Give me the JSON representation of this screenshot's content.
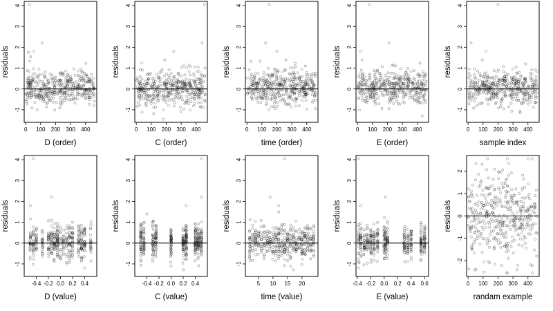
{
  "chart_data": [
    {
      "type": "scatter",
      "xlabel": "D (order)",
      "ylabel": "residuals",
      "distribution": "uniform",
      "x_range": [
        1,
        460
      ],
      "xlim": [
        -10,
        475
      ],
      "ylim": [
        -1.6,
        4.2
      ],
      "xticks": [
        0,
        100,
        200,
        300,
        400
      ],
      "xtick_labels": [
        "0",
        "100",
        "200",
        "300",
        "400"
      ],
      "yticks": [
        -1,
        0,
        1,
        2,
        3,
        4
      ],
      "ytick_labels": [
        "-1",
        "0",
        "1",
        "2",
        "3",
        "4"
      ],
      "hline": 0,
      "outliers": [
        [
          25,
          4.05
        ],
        [
          55,
          1.8
        ],
        [
          18,
          1.75
        ],
        [
          110,
          2.2
        ]
      ],
      "seed": 11
    },
    {
      "type": "scatter",
      "xlabel": "C (order)",
      "ylabel": "residuals",
      "distribution": "uniform",
      "x_range": [
        1,
        460
      ],
      "xlim": [
        -10,
        475
      ],
      "ylim": [
        -1.6,
        4.2
      ],
      "xticks": [
        0,
        100,
        200,
        300,
        400
      ],
      "xtick_labels": [
        "0",
        "100",
        "200",
        "300",
        "400"
      ],
      "yticks": [
        -1,
        0,
        1,
        2,
        3,
        4
      ],
      "ytick_labels": [
        "-1",
        "0",
        "1",
        "2",
        "3",
        "4"
      ],
      "hline": 0,
      "outliers": [
        [
          455,
          4.05
        ],
        [
          440,
          2.2
        ],
        [
          250,
          1.8
        ],
        [
          190,
          1.4
        ]
      ],
      "seed": 23
    },
    {
      "type": "scatter",
      "xlabel": "time (order)",
      "ylabel": "residuals",
      "distribution": "uniform",
      "x_range": [
        1,
        460
      ],
      "xlim": [
        -10,
        475
      ],
      "ylim": [
        -1.6,
        4.2
      ],
      "xticks": [
        0,
        100,
        200,
        300,
        400
      ],
      "xtick_labels": [
        "0",
        "100",
        "200",
        "300",
        "400"
      ],
      "yticks": [
        -1,
        0,
        1,
        2,
        3,
        4
      ],
      "ytick_labels": [
        "-1",
        "0",
        "1",
        "2",
        "3",
        "4"
      ],
      "hline": 0,
      "outliers": [
        [
          150,
          4.05
        ],
        [
          125,
          2.2
        ],
        [
          200,
          1.8
        ],
        [
          260,
          1.4
        ]
      ],
      "seed": 37
    },
    {
      "type": "scatter",
      "xlabel": "E (order)",
      "ylabel": "residuals",
      "distribution": "uniform",
      "x_range": [
        1,
        460
      ],
      "xlim": [
        -10,
        475
      ],
      "ylim": [
        -1.6,
        4.2
      ],
      "xticks": [
        0,
        100,
        200,
        300,
        400
      ],
      "xtick_labels": [
        "0",
        "100",
        "200",
        "300",
        "400"
      ],
      "yticks": [
        -1,
        0,
        1,
        2,
        3,
        4
      ],
      "ytick_labels": [
        "-1",
        "0",
        "1",
        "2",
        "3",
        "4"
      ],
      "hline": 0,
      "outliers": [
        [
          80,
          4.05
        ],
        [
          210,
          2.2
        ],
        [
          20,
          1.8
        ],
        [
          30,
          1.4
        ]
      ],
      "seed": 41
    },
    {
      "type": "scatter",
      "xlabel": "sample index",
      "ylabel": "residuals",
      "distribution": "uniform",
      "x_range": [
        1,
        460
      ],
      "xlim": [
        -10,
        475
      ],
      "ylim": [
        -1.6,
        4.2
      ],
      "xticks": [
        0,
        100,
        200,
        300,
        400
      ],
      "xtick_labels": [
        "0",
        "100",
        "200",
        "300",
        "400"
      ],
      "yticks": [
        -1,
        0,
        1,
        2,
        3,
        4
      ],
      "ytick_labels": [
        "-1",
        "0",
        "1",
        "2",
        "3",
        "4"
      ],
      "hline": 0,
      "outliers": [
        [
          200,
          4.05
        ],
        [
          20,
          2.2
        ],
        [
          120,
          1.8
        ],
        [
          95,
          1.4
        ]
      ],
      "seed": 53
    },
    {
      "type": "scatter",
      "xlabel": "D (value)",
      "ylabel": "residuals",
      "distribution": "clustered",
      "x_centers": [
        -0.5,
        -0.45,
        -0.4,
        -0.3,
        -0.2,
        -0.15,
        -0.1,
        -0.05,
        0,
        0.05,
        0.1,
        0.15,
        0.2,
        0.3,
        0.35,
        0.4,
        0.5
      ],
      "xlim": [
        -0.6,
        0.6
      ],
      "ylim": [
        -1.6,
        4.2
      ],
      "xticks": [
        -0.4,
        -0.2,
        0,
        0.2,
        0.4
      ],
      "xtick_labels": [
        "-0.4",
        "-0.2",
        "0.0",
        "0.2",
        "0.4"
      ],
      "yticks": [
        -1,
        0,
        1,
        2,
        3,
        4
      ],
      "ytick_labels": [
        "-1",
        "0",
        "1",
        "2",
        "3",
        "4"
      ],
      "hline": 0,
      "outliers": [
        [
          -0.45,
          4.05
        ],
        [
          -0.15,
          2.2
        ],
        [
          -0.5,
          1.8
        ],
        [
          0.2,
          1.0
        ]
      ],
      "seed": 61
    },
    {
      "type": "scatter",
      "xlabel": "C (value)",
      "ylabel": "residuals",
      "distribution": "clustered",
      "x_centers": [
        -0.5,
        -0.45,
        -0.3,
        -0.25,
        0,
        0.2,
        0.25,
        0.4,
        0.45,
        0.5
      ],
      "xlim": [
        -0.6,
        0.6
      ],
      "ylim": [
        -1.6,
        4.2
      ],
      "xticks": [
        -0.4,
        -0.2,
        0,
        0.2,
        0.4
      ],
      "xtick_labels": [
        "-0.4",
        "-0.2",
        "0.0",
        "0.2",
        "0.4"
      ],
      "yticks": [
        -1,
        0,
        1,
        2,
        3,
        4
      ],
      "ytick_labels": [
        "-1",
        "0",
        "1",
        "2",
        "3",
        "4"
      ],
      "hline": 0,
      "outliers": [
        [
          0.5,
          4.05
        ],
        [
          0.5,
          2.2
        ],
        [
          0.25,
          1.8
        ],
        [
          -0.4,
          1.4
        ]
      ],
      "seed": 71
    },
    {
      "type": "scatter",
      "xlabel": "time (value)",
      "ylabel": "residuals",
      "distribution": "clustered",
      "x_centers": [
        2,
        3,
        4,
        5,
        6,
        7,
        8,
        9,
        10,
        11,
        12,
        13,
        14,
        15,
        16,
        17,
        18,
        19,
        20,
        21,
        22,
        23,
        24
      ],
      "xlim": [
        0.5,
        25.5
      ],
      "ylim": [
        -1.6,
        4.2
      ],
      "xticks": [
        5,
        10,
        15,
        20
      ],
      "xtick_labels": [
        "5",
        "10",
        "15",
        "20"
      ],
      "yticks": [
        -1,
        0,
        1,
        2,
        3,
        4
      ],
      "ytick_labels": [
        "-1",
        "0",
        "1",
        "2",
        "3",
        "4"
      ],
      "hline": 0,
      "outliers": [
        [
          14,
          4.05
        ],
        [
          9,
          2.2
        ],
        [
          12,
          1.8
        ],
        [
          12,
          1.5
        ]
      ],
      "seed": 83
    },
    {
      "type": "scatter",
      "xlabel": "E (value)",
      "ylabel": "residuals",
      "distribution": "clustered",
      "x_centers": [
        -0.38,
        -0.35,
        -0.3,
        -0.25,
        -0.2,
        -0.15,
        -0.1,
        0,
        0.02,
        0.05,
        0.3,
        0.35,
        0.4,
        0.55,
        0.6
      ],
      "xlim": [
        -0.42,
        0.66
      ],
      "ylim": [
        -1.6,
        4.2
      ],
      "xticks": [
        -0.4,
        -0.2,
        0,
        0.2,
        0.4,
        0.6
      ],
      "xtick_labels": [
        "-0.4",
        "-0.2",
        "0.0",
        "0.2",
        "0.4",
        "0.6"
      ],
      "yticks": [
        -1,
        0,
        1,
        2,
        3,
        4
      ],
      "ytick_labels": [
        "-1",
        "0",
        "1",
        "2",
        "3",
        "4"
      ],
      "hline": 0,
      "outliers": [
        [
          -0.38,
          4.05
        ],
        [
          0.02,
          2.2
        ],
        [
          -0.35,
          1.8
        ]
      ],
      "seed": 97
    },
    {
      "type": "scatter",
      "xlabel": "randam example",
      "ylabel": "residuals",
      "distribution": "uniform-normal",
      "x_range": [
        1,
        460
      ],
      "xlim": [
        -10,
        475
      ],
      "ylim": [
        -2.7,
        2.7
      ],
      "xticks": [
        0,
        100,
        200,
        300,
        400
      ],
      "xtick_labels": [
        "0",
        "100",
        "200",
        "300",
        "400"
      ],
      "yticks": [
        -2,
        -1,
        0,
        1,
        2
      ],
      "ytick_labels": [
        "-2",
        "-1",
        "0",
        "1",
        "2"
      ],
      "hline": 0,
      "outliers": [],
      "seed": 101
    }
  ]
}
